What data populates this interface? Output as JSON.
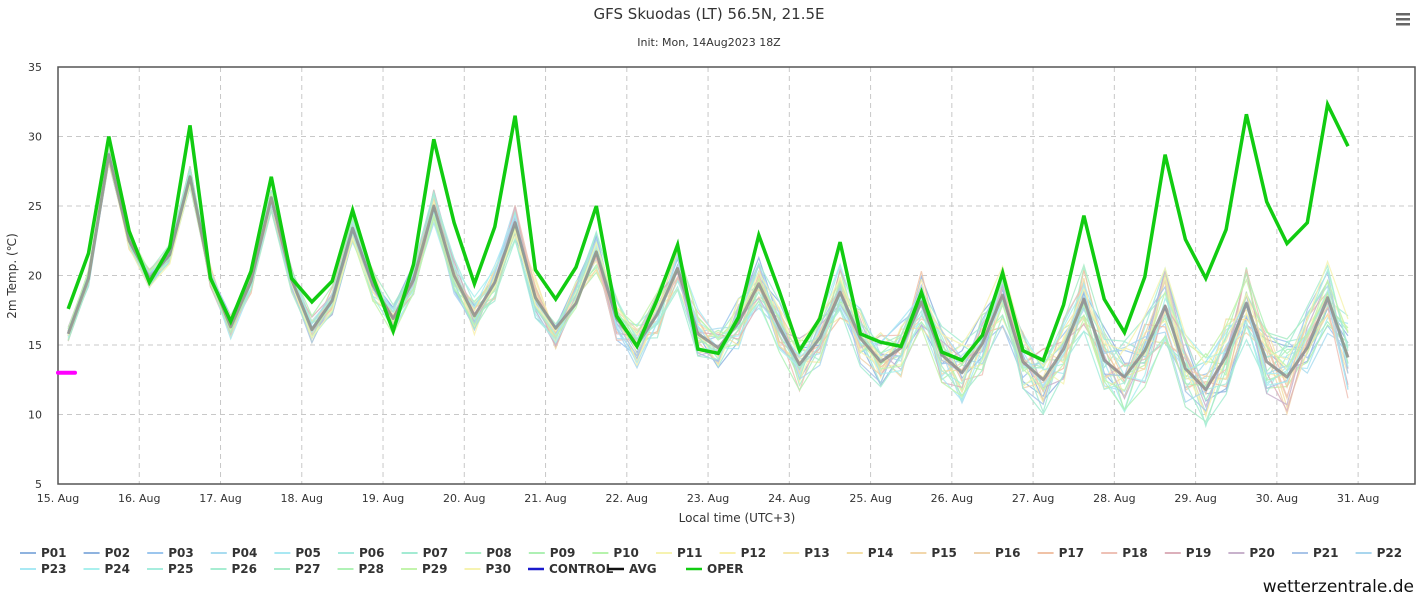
{
  "chart_data": {
    "type": "line",
    "title": "GFS Skuodas (LT) 56.5N, 21.5E",
    "subtitle": "Init: Mon, 14Aug2023 18Z",
    "xlabel": "Local time (UTC+3)",
    "ylabel": "2m Temp. (℃)",
    "ylim": [
      5,
      35
    ],
    "yticks": [
      5,
      10,
      15,
      20,
      25,
      30,
      35
    ],
    "xlim": [
      0,
      16.7
    ],
    "xticks": [
      "15. Aug",
      "16. Aug",
      "17. Aug",
      "18. Aug",
      "19. Aug",
      "20. Aug",
      "21. Aug",
      "22. Aug",
      "23. Aug",
      "24. Aug",
      "25. Aug",
      "26. Aug",
      "27. Aug",
      "28. Aug",
      "29. Aug",
      "30. Aug",
      "31. Aug"
    ],
    "grid": true,
    "legend_position": "bottom",
    "step_days": 0.25,
    "start_offset_days": 0.125,
    "marker": {
      "value": 13.0,
      "color": "#ff00ff"
    },
    "series": [
      {
        "name": "OPER",
        "color": "#11cc11",
        "values": [
          17.6,
          21.6,
          30.0,
          23.2,
          19.5,
          22.0,
          30.8,
          19.8,
          16.7,
          20.3,
          27.1,
          19.8,
          18.1,
          19.6,
          24.7,
          19.9,
          16.0,
          20.8,
          29.8,
          23.8,
          19.4,
          23.5,
          31.5,
          20.4,
          18.3,
          20.6,
          25.0,
          17.1,
          14.9,
          18.3,
          22.2,
          14.7,
          14.4,
          17.0,
          22.9,
          18.9,
          14.6,
          16.9,
          22.4,
          15.8,
          15.2,
          14.9,
          18.8,
          14.5,
          13.9,
          15.7,
          20.2,
          14.6,
          13.9,
          17.9,
          24.3,
          18.3,
          15.9,
          19.9,
          28.7,
          22.6,
          19.8,
          23.3,
          31.6,
          25.3,
          22.3,
          23.8,
          32.3,
          29.3
        ]
      },
      {
        "name": "AVG",
        "color": "#888888",
        "values": [
          15.8,
          19.8,
          28.7,
          22.5,
          19.8,
          21.5,
          27.1,
          19.9,
          16.3,
          19.6,
          25.6,
          19.7,
          16.1,
          18.2,
          23.4,
          19.3,
          16.9,
          19.7,
          25.0,
          20.0,
          17.1,
          19.5,
          23.8,
          18.4,
          16.2,
          18.0,
          21.7,
          16.9,
          15.0,
          17.2,
          20.5,
          15.8,
          14.8,
          16.6,
          19.4,
          16.3,
          13.6,
          15.5,
          18.8,
          15.5,
          13.8,
          14.8,
          18.1,
          14.3,
          13.0,
          15.1,
          18.6,
          13.8,
          12.5,
          14.7,
          18.3,
          13.9,
          12.7,
          14.6,
          17.8,
          13.3,
          11.8,
          14.2,
          18.0,
          13.8,
          12.7,
          14.8,
          18.4,
          14.1
        ]
      }
    ]
  },
  "legend": [
    {
      "name": "P01",
      "color": "#8fb3df"
    },
    {
      "name": "P02",
      "color": "#8fb3df"
    },
    {
      "name": "P03",
      "color": "#9cc6ee"
    },
    {
      "name": "P04",
      "color": "#a9dcf0"
    },
    {
      "name": "P05",
      "color": "#a9e8f3"
    },
    {
      "name": "P06",
      "color": "#a6eadf"
    },
    {
      "name": "P07",
      "color": "#a3ebd3"
    },
    {
      "name": "P08",
      "color": "#a8efc4"
    },
    {
      "name": "P09",
      "color": "#aef0b4"
    },
    {
      "name": "P10",
      "color": "#b6f3ac"
    },
    {
      "name": "P11",
      "color": "#f6f3b1"
    },
    {
      "name": "P12",
      "color": "#f9f0ad"
    },
    {
      "name": "P13",
      "color": "#f6e8ac"
    },
    {
      "name": "P14",
      "color": "#f3dfa6"
    },
    {
      "name": "P15",
      "color": "#f2d7ab"
    },
    {
      "name": "P16",
      "color": "#eed2ad"
    },
    {
      "name": "P17",
      "color": "#f0c2a6"
    },
    {
      "name": "P18",
      "color": "#eec1b6"
    },
    {
      "name": "P19",
      "color": "#dcb0bb"
    },
    {
      "name": "P20",
      "color": "#c8b2cc"
    },
    {
      "name": "P21",
      "color": "#a8c4e8"
    },
    {
      "name": "P22",
      "color": "#a9d6ee"
    },
    {
      "name": "P23",
      "color": "#a9e9f4"
    },
    {
      "name": "P24",
      "color": "#aaf0ee"
    },
    {
      "name": "P25",
      "color": "#a7edde"
    },
    {
      "name": "P26",
      "color": "#a7edd2"
    },
    {
      "name": "P27",
      "color": "#a9ecc7"
    },
    {
      "name": "P28",
      "color": "#b0f2b6"
    },
    {
      "name": "P29",
      "color": "#c3f4ac"
    },
    {
      "name": "P30",
      "color": "#f6f3b1"
    },
    {
      "name": "CONTROL",
      "color": "#1a1acc"
    },
    {
      "name": "AVG",
      "color": "#111111"
    },
    {
      "name": "OPER",
      "color": "#11cc11"
    }
  ],
  "credit": "wetterzentrale.de",
  "menu_icon": "hamburger-menu-icon"
}
